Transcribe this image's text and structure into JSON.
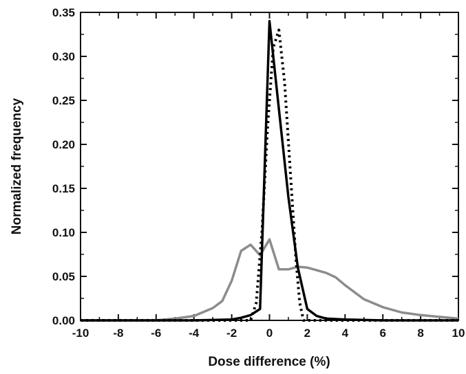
{
  "chart_data": {
    "type": "line",
    "title": "",
    "xlabel": "Dose difference (%)",
    "ylabel": "Normalized frequency",
    "xlim": [
      -10,
      10
    ],
    "ylim": [
      0,
      0.35
    ],
    "x_ticks": [
      -10,
      -8,
      -6,
      -4,
      -2,
      0,
      2,
      4,
      6,
      8,
      10
    ],
    "y_ticks": [
      0.0,
      0.05,
      0.1,
      0.15,
      0.2,
      0.25,
      0.3,
      0.35
    ],
    "x_tick_labels": [
      "-10",
      "-8",
      "-6",
      "-4",
      "-2",
      "0",
      "2",
      "4",
      "6",
      "8",
      "10"
    ],
    "y_tick_labels": [
      "0.00",
      "0.05",
      "0.10",
      "0.15",
      "0.20",
      "0.25",
      "0.30",
      "0.35"
    ],
    "grid": false,
    "legend": "none",
    "series": [
      {
        "style": "solid",
        "color": "#000000",
        "x": [
          -10,
          -6,
          -4,
          -2,
          -1.5,
          -1,
          -0.5,
          0,
          0.5,
          1,
          1.5,
          2,
          2.5,
          3,
          4,
          6,
          10
        ],
        "y": [
          0,
          0,
          0,
          0.001,
          0.003,
          0.006,
          0.013,
          0.34,
          0.24,
          0.14,
          0.06,
          0.013,
          0.005,
          0.002,
          0.001,
          0,
          0
        ]
      },
      {
        "style": "dotted",
        "color": "#000000",
        "x": [
          -10,
          -2,
          -1,
          -0.7,
          -0.4,
          -0.1,
          0.2,
          0.5,
          0.8,
          1.1,
          1.4,
          1.6,
          1.8,
          2,
          10
        ],
        "y": [
          0,
          0,
          0.0,
          0.02,
          0.1,
          0.22,
          0.31,
          0.33,
          0.27,
          0.17,
          0.07,
          0.02,
          0.0,
          0,
          0
        ]
      },
      {
        "style": "solid",
        "color": "#8c8c8c",
        "x": [
          -10,
          -6,
          -5,
          -4,
          -3,
          -2.5,
          -2,
          -1.5,
          -1,
          -0.5,
          0,
          0.5,
          1,
          1.5,
          2,
          3,
          3.5,
          4,
          5,
          6,
          7,
          8,
          9,
          10
        ],
        "y": [
          0,
          0.0,
          0.002,
          0.005,
          0.014,
          0.022,
          0.045,
          0.079,
          0.086,
          0.074,
          0.092,
          0.058,
          0.058,
          0.061,
          0.06,
          0.054,
          0.049,
          0.04,
          0.024,
          0.015,
          0.009,
          0.006,
          0.004,
          0.002
        ]
      }
    ]
  }
}
